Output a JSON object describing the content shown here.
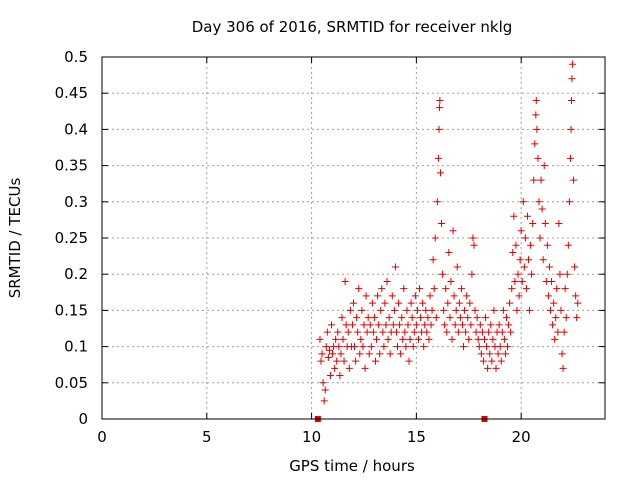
{
  "colors": {
    "series": "#e00000",
    "axis": "#000000",
    "grid": "#a0a0a0"
  },
  "chart_data": {
    "type": "scatter",
    "title": "Day 306 of 2016, SRMTID for receiver nklg",
    "xlabel": "GPS time / hours",
    "ylabel": "SRMTID / TECUs",
    "xlim": [
      0,
      24
    ],
    "ylim": [
      0,
      0.5
    ],
    "xticks": [
      0,
      5,
      10,
      15,
      20
    ],
    "yticks": [
      0,
      0.05,
      0.1,
      0.15,
      0.2,
      0.25,
      0.3,
      0.35,
      0.4,
      0.45,
      0.5
    ],
    "xtick_labels": [
      "0",
      "5",
      "10",
      "15",
      "20"
    ],
    "ytick_labels": [
      "0",
      "0.05",
      "0.1",
      "0.15",
      "0.2",
      "0.25",
      "0.3",
      "0.35",
      "0.4",
      "0.45",
      "0.5"
    ],
    "grid": true,
    "marker": "plus",
    "baseline_markers": [
      10.3,
      18.25
    ],
    "series": [
      {
        "name": "SRMTID",
        "points": [
          [
            10.4,
            0.11
          ],
          [
            10.45,
            0.08
          ],
          [
            10.5,
            0.09
          ],
          [
            10.55,
            0.05
          ],
          [
            10.6,
            0.025
          ],
          [
            10.65,
            0.04
          ],
          [
            10.7,
            0.1
          ],
          [
            10.75,
            0.12
          ],
          [
            10.8,
            0.085
          ],
          [
            10.85,
            0.095
          ],
          [
            10.9,
            0.06
          ],
          [
            10.95,
            0.13
          ],
          [
            11.0,
            0.09
          ],
          [
            11.05,
            0.1
          ],
          [
            11.1,
            0.07
          ],
          [
            11.15,
            0.11
          ],
          [
            11.2,
            0.08
          ],
          [
            11.25,
            0.12
          ],
          [
            11.3,
            0.1
          ],
          [
            11.35,
            0.06
          ],
          [
            11.4,
            0.09
          ],
          [
            11.45,
            0.14
          ],
          [
            11.5,
            0.11
          ],
          [
            11.55,
            0.08
          ],
          [
            11.6,
            0.19
          ],
          [
            11.65,
            0.13
          ],
          [
            11.7,
            0.1
          ],
          [
            11.75,
            0.12
          ],
          [
            11.8,
            0.07
          ],
          [
            11.85,
            0.15
          ],
          [
            11.9,
            0.1
          ],
          [
            11.95,
            0.13
          ],
          [
            12.0,
            0.16
          ],
          [
            12.05,
            0.1
          ],
          [
            12.1,
            0.08
          ],
          [
            12.15,
            0.14
          ],
          [
            12.2,
            0.12
          ],
          [
            12.25,
            0.18
          ],
          [
            12.3,
            0.09
          ],
          [
            12.35,
            0.11
          ],
          [
            12.4,
            0.15
          ],
          [
            12.45,
            0.1
          ],
          [
            12.5,
            0.13
          ],
          [
            12.55,
            0.07
          ],
          [
            12.6,
            0.17
          ],
          [
            12.65,
            0.12
          ],
          [
            12.7,
            0.14
          ],
          [
            12.75,
            0.09
          ],
          [
            12.8,
            0.13
          ],
          [
            12.85,
            0.1
          ],
          [
            12.9,
            0.16
          ],
          [
            12.95,
            0.12
          ],
          [
            13.0,
            0.14
          ],
          [
            13.05,
            0.08
          ],
          [
            13.1,
            0.11
          ],
          [
            13.15,
            0.17
          ],
          [
            13.2,
            0.13
          ],
          [
            13.25,
            0.09
          ],
          [
            13.3,
            0.15
          ],
          [
            13.35,
            0.18
          ],
          [
            13.4,
            0.12
          ],
          [
            13.45,
            0.1
          ],
          [
            13.5,
            0.16
          ],
          [
            13.55,
            0.13
          ],
          [
            13.6,
            0.19
          ],
          [
            13.65,
            0.11
          ],
          [
            13.7,
            0.14
          ],
          [
            13.75,
            0.09
          ],
          [
            13.8,
            0.12
          ],
          [
            13.85,
            0.17
          ],
          [
            13.9,
            0.13
          ],
          [
            13.95,
            0.15
          ],
          [
            14.0,
            0.21
          ],
          [
            14.05,
            0.12
          ],
          [
            14.1,
            0.1
          ],
          [
            14.15,
            0.16
          ],
          [
            14.2,
            0.13
          ],
          [
            14.25,
            0.09
          ],
          [
            14.3,
            0.14
          ],
          [
            14.35,
            0.11
          ],
          [
            14.4,
            0.18
          ],
          [
            14.45,
            0.12
          ],
          [
            14.5,
            0.1
          ],
          [
            14.55,
            0.15
          ],
          [
            14.6,
            0.13
          ],
          [
            14.65,
            0.08
          ],
          [
            14.7,
            0.11
          ],
          [
            14.75,
            0.16
          ],
          [
            14.8,
            0.14
          ],
          [
            14.85,
            0.1
          ],
          [
            14.9,
            0.12
          ],
          [
            14.95,
            0.17
          ],
          [
            15.0,
            0.13
          ],
          [
            15.05,
            0.15
          ],
          [
            15.1,
            0.11
          ],
          [
            15.15,
            0.18
          ],
          [
            15.2,
            0.14
          ],
          [
            15.25,
            0.12
          ],
          [
            15.3,
            0.16
          ],
          [
            15.35,
            0.1
          ],
          [
            15.4,
            0.13
          ],
          [
            15.45,
            0.15
          ],
          [
            15.5,
            0.12
          ],
          [
            15.55,
            0.14
          ],
          [
            15.6,
            0.11
          ],
          [
            15.65,
            0.17
          ],
          [
            15.7,
            0.13
          ],
          [
            15.75,
            0.15
          ],
          [
            15.8,
            0.22
          ],
          [
            15.85,
            0.18
          ],
          [
            15.9,
            0.25
          ],
          [
            15.95,
            0.14
          ],
          [
            16.0,
            0.3
          ],
          [
            16.05,
            0.36
          ],
          [
            16.08,
            0.4
          ],
          [
            16.1,
            0.43
          ],
          [
            16.12,
            0.44
          ],
          [
            16.15,
            0.34
          ],
          [
            16.2,
            0.27
          ],
          [
            16.25,
            0.2
          ],
          [
            16.3,
            0.15
          ],
          [
            16.35,
            0.13
          ],
          [
            16.4,
            0.18
          ],
          [
            16.45,
            0.12
          ],
          [
            16.5,
            0.16
          ],
          [
            16.55,
            0.23
          ],
          [
            16.6,
            0.14
          ],
          [
            16.65,
            0.19
          ],
          [
            16.7,
            0.11
          ],
          [
            16.75,
            0.26
          ],
          [
            16.8,
            0.17
          ],
          [
            16.85,
            0.13
          ],
          [
            16.9,
            0.15
          ],
          [
            16.95,
            0.21
          ],
          [
            17.0,
            0.12
          ],
          [
            17.05,
            0.16
          ],
          [
            17.1,
            0.14
          ],
          [
            17.15,
            0.18
          ],
          [
            17.2,
            0.13
          ],
          [
            17.25,
            0.1
          ],
          [
            17.3,
            0.15
          ],
          [
            17.35,
            0.12
          ],
          [
            17.4,
            0.17
          ],
          [
            17.45,
            0.14
          ],
          [
            17.5,
            0.11
          ],
          [
            17.55,
            0.16
          ],
          [
            17.6,
            0.13
          ],
          [
            17.65,
            0.2
          ],
          [
            17.7,
            0.25
          ],
          [
            17.75,
            0.24
          ],
          [
            17.8,
            0.15
          ],
          [
            17.85,
            0.12
          ],
          [
            17.9,
            0.14
          ],
          [
            17.95,
            0.11
          ],
          [
            18.0,
            0.1
          ],
          [
            18.05,
            0.13
          ],
          [
            18.1,
            0.09
          ],
          [
            18.15,
            0.12
          ],
          [
            18.2,
            0.08
          ],
          [
            18.25,
            0.11
          ],
          [
            18.3,
            0.14
          ],
          [
            18.35,
            0.1
          ],
          [
            18.4,
            0.07
          ],
          [
            18.45,
            0.12
          ],
          [
            18.5,
            0.09
          ],
          [
            18.55,
            0.13
          ],
          [
            18.6,
            0.08
          ],
          [
            18.65,
            0.11
          ],
          [
            18.7,
            0.15
          ],
          [
            18.75,
            0.1
          ],
          [
            18.8,
            0.07
          ],
          [
            18.85,
            0.12
          ],
          [
            18.9,
            0.09
          ],
          [
            18.95,
            0.13
          ],
          [
            19.0,
            0.1
          ],
          [
            19.05,
            0.08
          ],
          [
            19.1,
            0.12
          ],
          [
            19.15,
            0.15
          ],
          [
            19.2,
            0.11
          ],
          [
            19.25,
            0.09
          ],
          [
            19.3,
            0.14
          ],
          [
            19.35,
            0.1
          ],
          [
            19.4,
            0.13
          ],
          [
            19.45,
            0.16
          ],
          [
            19.5,
            0.12
          ],
          [
            19.55,
            0.18
          ],
          [
            19.6,
            0.23
          ],
          [
            19.65,
            0.28
          ],
          [
            19.7,
            0.19
          ],
          [
            19.75,
            0.24
          ],
          [
            19.8,
            0.15
          ],
          [
            19.85,
            0.2
          ],
          [
            19.9,
            0.17
          ],
          [
            19.95,
            0.22
          ],
          [
            20.0,
            0.26
          ],
          [
            20.05,
            0.19
          ],
          [
            20.1,
            0.3
          ],
          [
            20.15,
            0.21
          ],
          [
            20.2,
            0.25
          ],
          [
            20.25,
            0.18
          ],
          [
            20.3,
            0.28
          ],
          [
            20.35,
            0.22
          ],
          [
            20.4,
            0.15
          ],
          [
            20.45,
            0.24
          ],
          [
            20.5,
            0.2
          ],
          [
            20.55,
            0.27
          ],
          [
            20.6,
            0.33
          ],
          [
            20.65,
            0.38
          ],
          [
            20.7,
            0.42
          ],
          [
            20.72,
            0.44
          ],
          [
            20.75,
            0.4
          ],
          [
            20.8,
            0.36
          ],
          [
            20.85,
            0.3
          ],
          [
            20.9,
            0.25
          ],
          [
            20.95,
            0.33
          ],
          [
            21.0,
            0.29
          ],
          [
            21.05,
            0.22
          ],
          [
            21.1,
            0.35
          ],
          [
            21.15,
            0.27
          ],
          [
            21.2,
            0.19
          ],
          [
            21.25,
            0.24
          ],
          [
            21.3,
            0.17
          ],
          [
            21.35,
            0.21
          ],
          [
            21.4,
            0.15
          ],
          [
            21.45,
            0.19
          ],
          [
            21.5,
            0.13
          ],
          [
            21.55,
            0.16
          ],
          [
            21.6,
            0.11
          ],
          [
            21.65,
            0.14
          ],
          [
            21.7,
            0.18
          ],
          [
            21.75,
            0.12
          ],
          [
            21.8,
            0.27
          ],
          [
            21.85,
            0.2
          ],
          [
            21.9,
            0.15
          ],
          [
            21.95,
            0.09
          ],
          [
            22.0,
            0.07
          ],
          [
            22.05,
            0.12
          ],
          [
            22.1,
            0.18
          ],
          [
            22.15,
            0.14
          ],
          [
            22.2,
            0.2
          ],
          [
            22.25,
            0.24
          ],
          [
            22.3,
            0.3
          ],
          [
            22.35,
            0.36
          ],
          [
            22.38,
            0.4
          ],
          [
            22.4,
            0.44
          ],
          [
            22.42,
            0.47
          ],
          [
            22.45,
            0.49
          ],
          [
            22.5,
            0.33
          ],
          [
            22.55,
            0.21
          ],
          [
            22.6,
            0.17
          ],
          [
            22.65,
            0.14
          ],
          [
            22.7,
            0.16
          ]
        ]
      }
    ]
  }
}
